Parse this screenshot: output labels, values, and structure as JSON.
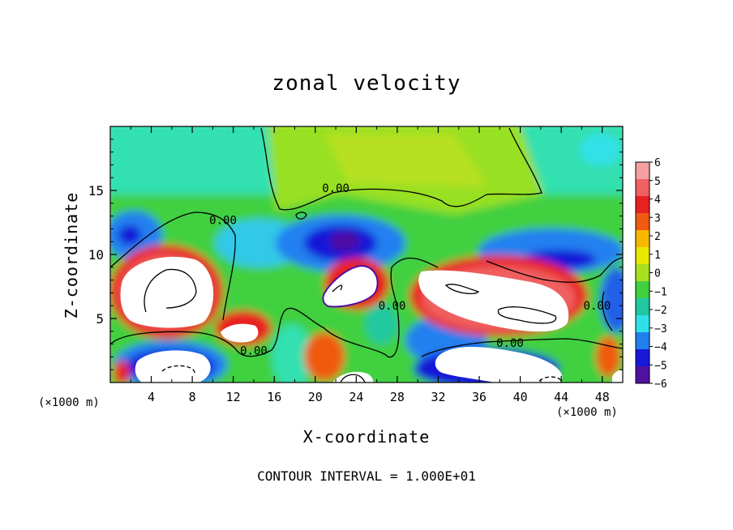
{
  "chart_data": {
    "type": "heatmap",
    "title": "zonal velocity",
    "xlabel": "X-coordinate",
    "ylabel": "Z-coordinate",
    "x_unit_label": "(×1000 m)",
    "footer": "CONTOUR INTERVAL = 1.000E+01",
    "xlim": [
      0,
      50
    ],
    "ylim": [
      0,
      20
    ],
    "x_ticks": [
      "4",
      "8",
      "12",
      "16",
      "20",
      "24",
      "28",
      "32",
      "36",
      "40",
      "44",
      "48"
    ],
    "x_tick_values": [
      4,
      8,
      12,
      16,
      20,
      24,
      28,
      32,
      36,
      40,
      44,
      48
    ],
    "y_ticks": [
      "5",
      "10",
      "15"
    ],
    "y_tick_values": [
      5,
      10,
      15
    ],
    "colorbar": {
      "ticks": [
        "6",
        "5",
        "4",
        "3",
        "2",
        "1",
        "0",
        "−1",
        "−2",
        "−3",
        "−4",
        "−5",
        "−6"
      ],
      "values": [
        6,
        5,
        4,
        3,
        2,
        1,
        0,
        -1,
        -2,
        -3,
        -4,
        -5,
        -6
      ],
      "colors": [
        "#f4a0a0",
        "#f06060",
        "#e82020",
        "#f05a10",
        "#f8b800",
        "#e8e800",
        "#a8e020",
        "#40d040",
        "#20c8a0",
        "#30e0e8",
        "#2080f0",
        "#1818d8",
        "#5010a0"
      ]
    },
    "contour_labels": [
      {
        "text": "0.00",
        "x": 22,
        "y": 15.2
      },
      {
        "text": "0.00",
        "x": 11,
        "y": 12.7
      },
      {
        "text": "0.00",
        "x": 14,
        "y": 2.5
      },
      {
        "text": "0.00",
        "x": 27.5,
        "y": 6
      },
      {
        "text": "0.00",
        "x": 39,
        "y": 3.1
      },
      {
        "text": "0.00",
        "x": 47.5,
        "y": 6
      }
    ],
    "features": [
      {
        "type": "max",
        "x": 6,
        "y": 7.5,
        "value": "> 6"
      },
      {
        "type": "max",
        "x": 12.8,
        "y": 4,
        "value": "> 6"
      },
      {
        "type": "max",
        "x": 23.5,
        "y": 7.3,
        "value": "> 6"
      },
      {
        "type": "max",
        "x": 39,
        "y": 6.2,
        "value": "> 6"
      },
      {
        "type": "min",
        "x": 23,
        "y": 11,
        "value": "-6"
      },
      {
        "type": "min",
        "x": 6,
        "y": 1.4,
        "value": "< -6"
      },
      {
        "type": "min",
        "x": 37,
        "y": 1.5,
        "value": "< -6"
      },
      {
        "type": "min",
        "x": 23.5,
        "y": 0.3,
        "value": "< -6"
      }
    ]
  }
}
